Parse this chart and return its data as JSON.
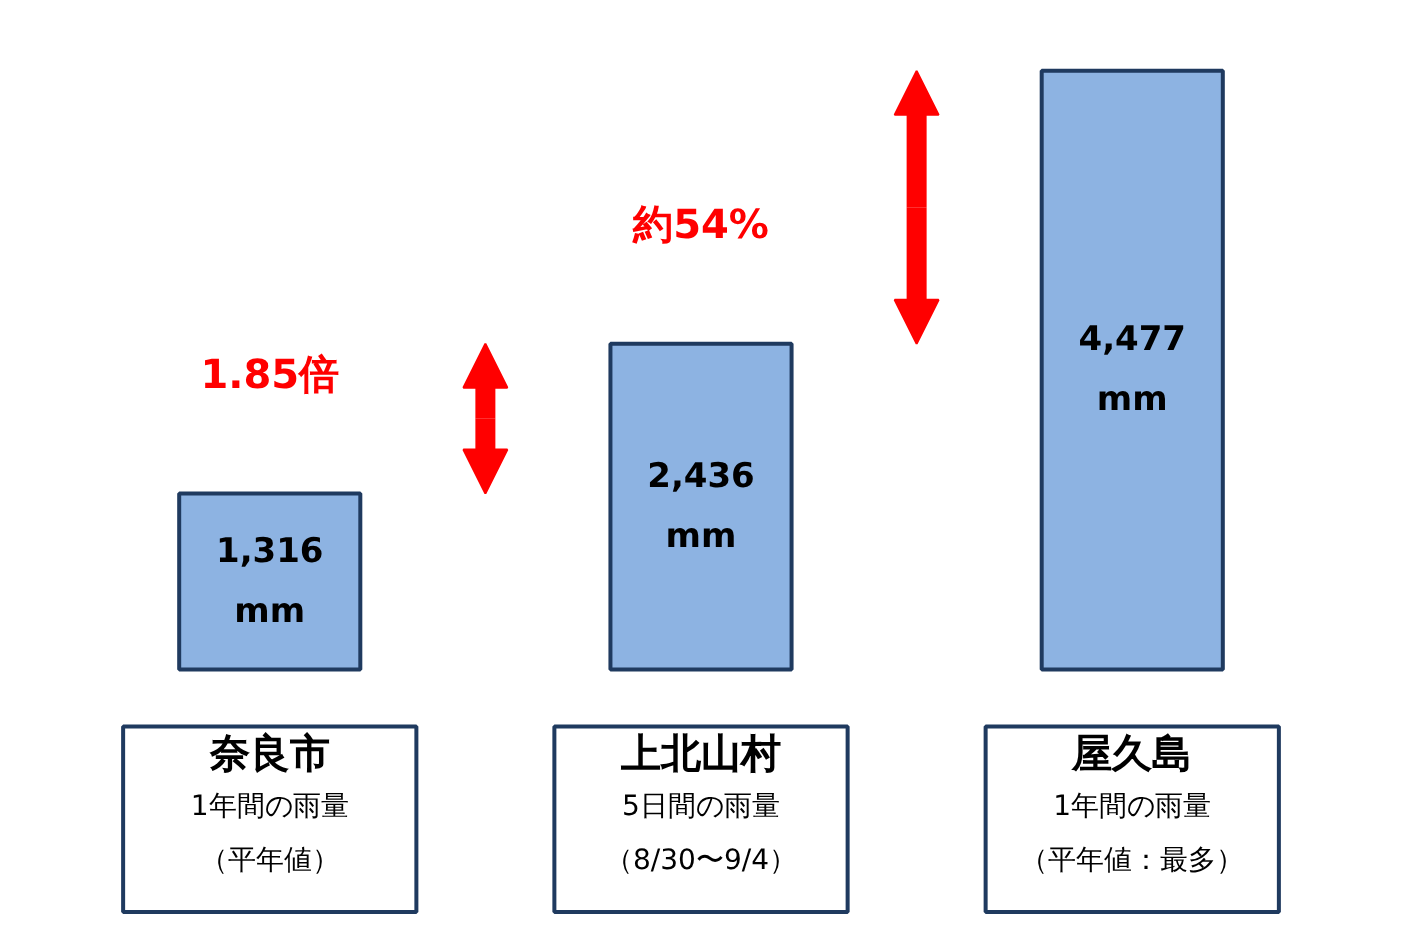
{
  "chart_data": {
    "type": "bar",
    "categories": [
      "奈良市\n1年間の雨量（平年値）",
      "上北山村\n5日間の雨量（8/30〜9/4）",
      "屋久島\n1年間の雨量（平年値：最多）"
    ],
    "values": [
      1316,
      2436,
      4477
    ],
    "color": "#8db3e2",
    "value_labels": [
      "1,316\nmm",
      "2,436\nmm",
      "4,477\nmm"
    ],
    "annotations": [
      "1.85倍",
      "約54%"
    ],
    "tick_labels": false,
    "grid": false
  }
}
